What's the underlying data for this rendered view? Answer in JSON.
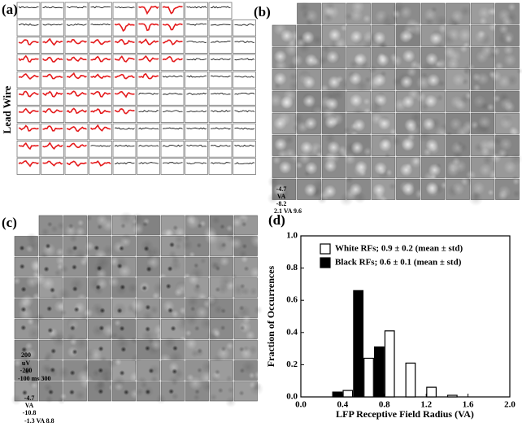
{
  "panel_a": {
    "label": "(a)",
    "ylabel": "Lead Wire",
    "scale_top": "200",
    "scale_unit": "uV",
    "scale_bottom": "-200",
    "scale_time": "-100 ms 300"
  },
  "panel_b": {
    "label": "(b)",
    "scale_top": "-4.7",
    "scale_unit": "VA",
    "scale_bottom": "-8.2",
    "scale_x": "2.1 VA 9.6"
  },
  "panel_c": {
    "label": "(c)",
    "scale_top": "-4.7",
    "scale_unit": "VA",
    "scale_bottom": "-10.8",
    "scale_x": "-1.3 VA 8.8"
  },
  "chart_data": {
    "type": "histogram",
    "label": "(d)",
    "xlabel": "LFP Receptive Field Radius (VA)",
    "ylabel": "Fraction of Occurrences",
    "xlim": [
      0,
      2
    ],
    "xticks": [
      {
        "value": 0,
        "label": "0.0"
      },
      0.4,
      0.8,
      1.2,
      1.6,
      {
        "value": 2,
        "label": "2.0"
      }
    ],
    "ylim": [
      0,
      1
    ],
    "yticks": [
      {
        "value": 0,
        "label": "0.0"
      },
      0.2,
      0.4,
      0.6,
      0.8,
      {
        "value": 1,
        "label": "1.0"
      }
    ],
    "series": [
      {
        "name": "White RFs; 0.9 ± 0.2 (mean ± std)",
        "color": "#ffffff",
        "x": [
          0.45,
          0.65,
          0.85,
          1.05,
          1.25,
          1.45
        ],
        "values": [
          0.04,
          0.24,
          0.41,
          0.21,
          0.06,
          0.01
        ]
      },
      {
        "name": "Black RFs; 0.6 ± 0.1 (mean ± std)",
        "color": "#000000",
        "x": [
          0.35,
          0.55,
          0.75
        ],
        "values": [
          0.03,
          0.66,
          0.31
        ]
      }
    ],
    "legend": "upper left"
  }
}
